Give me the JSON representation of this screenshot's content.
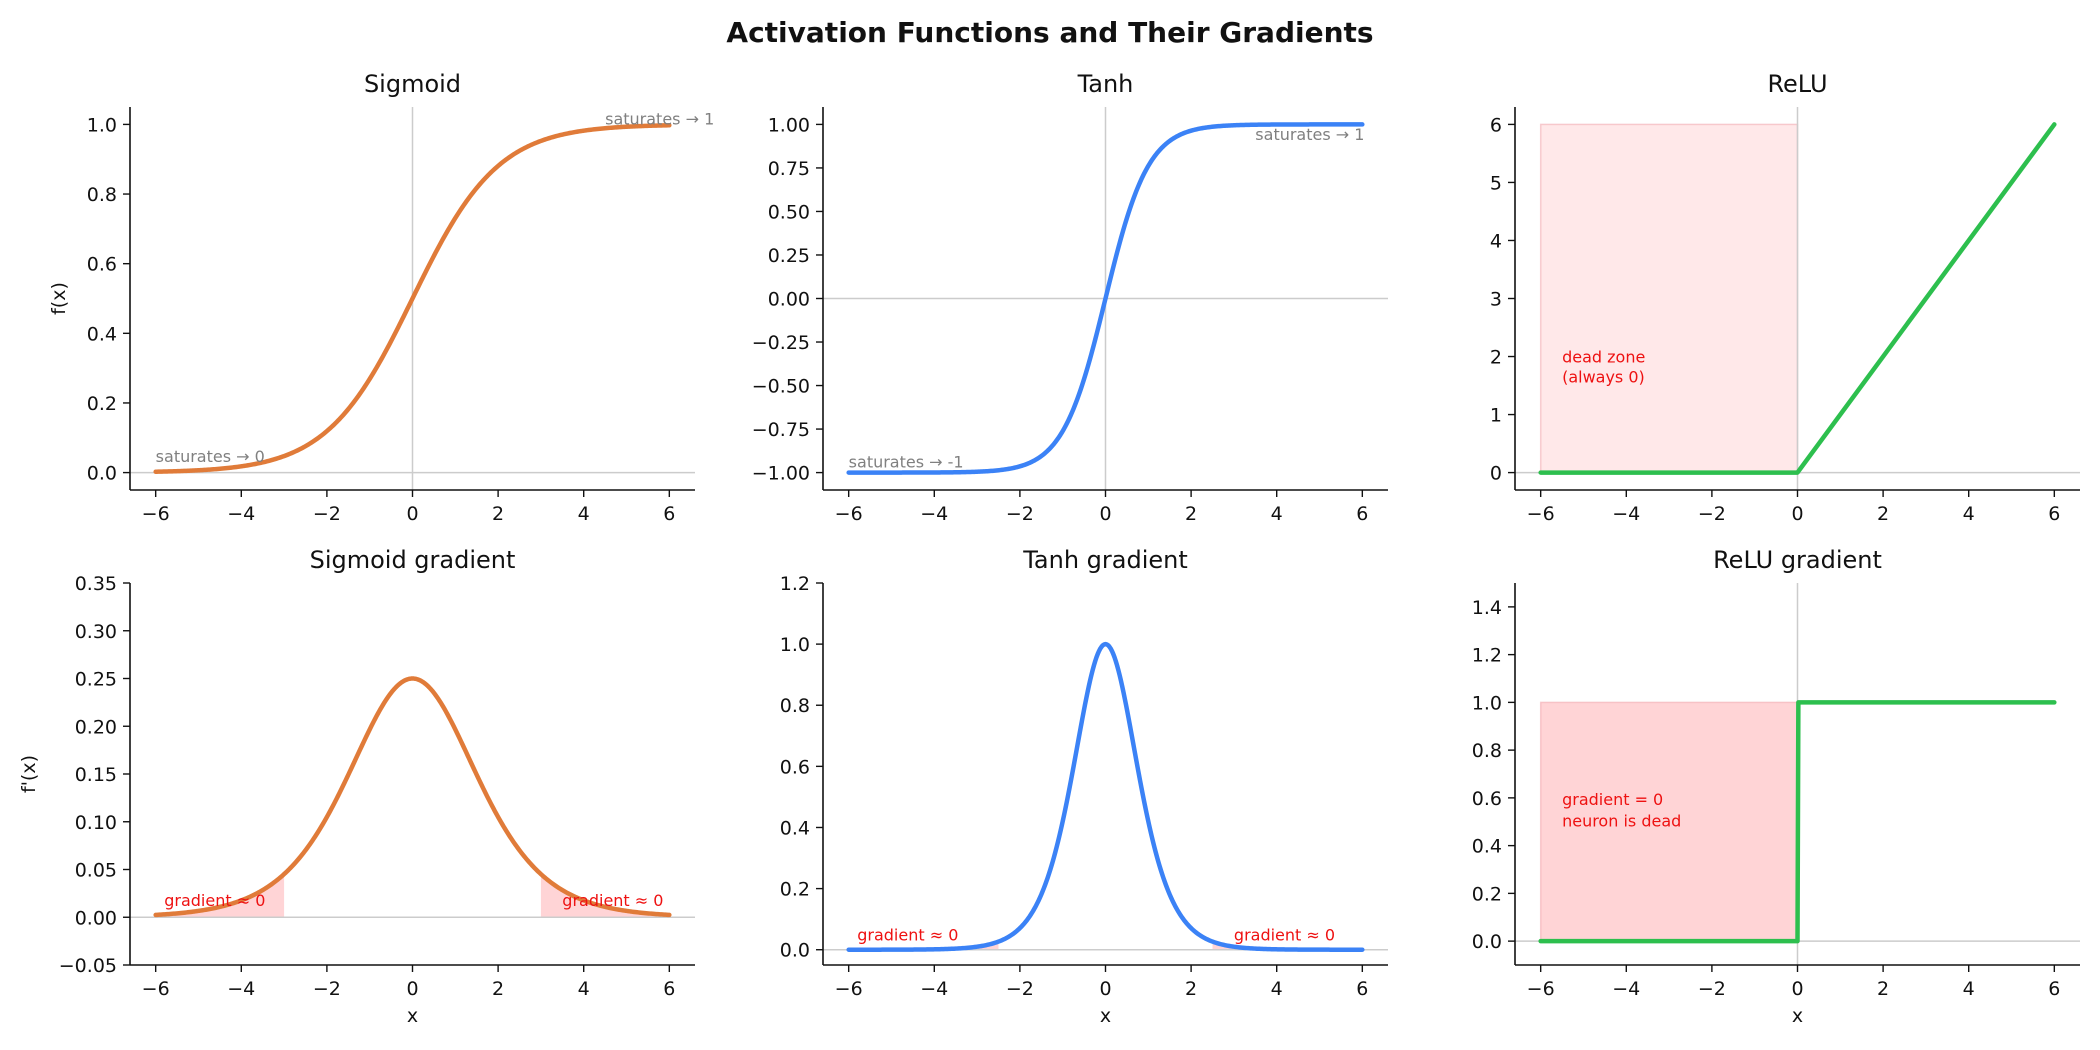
{
  "figure": {
    "title": "Activation Functions and Their Gradients"
  },
  "colors": {
    "sigmoid": "#e07b39",
    "tanh": "#3b82f6",
    "relu": "#2dbf4e",
    "region_fill": "#ffcccf",
    "region_text": "#ee1111",
    "annotation_gray": "#808080",
    "zero_line": "#cccccc"
  },
  "chart_data": [
    {
      "id": "sigmoid",
      "type": "line",
      "title": "Sigmoid",
      "xlabel": "",
      "ylabel": "f(x)",
      "xlim": [
        -6.6,
        6.6
      ],
      "ylim": [
        -0.05,
        1.05
      ],
      "xticks": [
        -6,
        -4,
        -2,
        0,
        2,
        4,
        6
      ],
      "yticks": [
        0.0,
        0.2,
        0.4,
        0.6,
        0.8,
        1.0
      ],
      "ytick_decimals": 1,
      "function": "sigmoid",
      "x_range": [
        -6,
        6
      ],
      "color": "#e07b39",
      "vline": true,
      "hline": true,
      "regions": [],
      "annotations": [
        {
          "x": -6,
          "y": 0.03,
          "text": "saturates → 0",
          "color": "gray",
          "anchor": "start"
        },
        {
          "x": 4.5,
          "y": 1.0,
          "text": "saturates → 1",
          "color": "gray",
          "anchor": "start"
        }
      ]
    },
    {
      "id": "tanh",
      "type": "line",
      "title": "Tanh",
      "xlabel": "",
      "ylabel": "",
      "xlim": [
        -6.6,
        6.6
      ],
      "ylim": [
        -1.1,
        1.1
      ],
      "xticks": [
        -6,
        -4,
        -2,
        0,
        2,
        4,
        6
      ],
      "yticks": [
        -1.0,
        -0.75,
        -0.5,
        -0.25,
        0.0,
        0.25,
        0.5,
        0.75,
        1.0
      ],
      "ytick_decimals": 2,
      "function": "tanh",
      "x_range": [
        -6,
        6
      ],
      "color": "#3b82f6",
      "vline": true,
      "hline": true,
      "regions": [],
      "annotations": [
        {
          "x": -6,
          "y": -0.97,
          "text": "saturates → -1",
          "color": "gray",
          "anchor": "start"
        },
        {
          "x": 3.5,
          "y": 0.91,
          "text": "saturates → 1",
          "color": "gray",
          "anchor": "start"
        }
      ]
    },
    {
      "id": "relu",
      "type": "line",
      "title": "ReLU",
      "xlabel": "",
      "ylabel": "",
      "xlim": [
        -6.6,
        6.6
      ],
      "ylim": [
        -0.3,
        6.3
      ],
      "xticks": [
        -6,
        -4,
        -2,
        0,
        2,
        4,
        6
      ],
      "yticks": [
        0,
        1,
        2,
        3,
        4,
        5,
        6
      ],
      "ytick_decimals": 0,
      "function": "relu",
      "x_range": [
        -6,
        6
      ],
      "color": "#2dbf4e",
      "vline": true,
      "hline": true,
      "regions": [
        {
          "x0": -6,
          "x1": 0,
          "y0": 0,
          "y1": 6,
          "opacity": 0.45
        }
      ],
      "annotations": [
        {
          "x": -5.5,
          "y": 1.9,
          "text": "dead zone",
          "color": "red",
          "anchor": "start"
        },
        {
          "x": -5.5,
          "y": 1.55,
          "text": "(always 0)",
          "color": "red",
          "anchor": "start"
        }
      ]
    },
    {
      "id": "sigmoid-gradient",
      "type": "line",
      "title": "Sigmoid gradient",
      "xlabel": "x",
      "ylabel": "f'(x)",
      "xlim": [
        -6.6,
        6.6
      ],
      "ylim": [
        -0.05,
        0.35
      ],
      "xticks": [
        -6,
        -4,
        -2,
        0,
        2,
        4,
        6
      ],
      "yticks": [
        -0.05,
        0.0,
        0.05,
        0.1,
        0.15,
        0.2,
        0.25,
        0.3,
        0.35
      ],
      "ytick_decimals": 2,
      "function": "sigmoid_grad",
      "x_range": [
        -6,
        6
      ],
      "color": "#e07b39",
      "vline": false,
      "hline": true,
      "regions": [
        {
          "x0": -6,
          "x1": -3,
          "y0": 0,
          "y1": "curve",
          "opacity": 0.85
        },
        {
          "x0": 3,
          "x1": 6,
          "y0": 0,
          "y1": "curve",
          "opacity": 0.85
        }
      ],
      "annotations": [
        {
          "x": -5.8,
          "y": 0.012,
          "text": "gradient ≈ 0",
          "color": "red",
          "anchor": "start"
        },
        {
          "x": 3.5,
          "y": 0.012,
          "text": "gradient ≈ 0",
          "color": "red",
          "anchor": "start"
        }
      ]
    },
    {
      "id": "tanh-gradient",
      "type": "line",
      "title": "Tanh gradient",
      "xlabel": "x",
      "ylabel": "",
      "xlim": [
        -6.6,
        6.6
      ],
      "ylim": [
        -0.05,
        1.2
      ],
      "xticks": [
        -6,
        -4,
        -2,
        0,
        2,
        4,
        6
      ],
      "yticks": [
        0.0,
        0.2,
        0.4,
        0.6,
        0.8,
        1.0,
        1.2
      ],
      "ytick_decimals": 1,
      "function": "tanh_grad",
      "x_range": [
        -6,
        6
      ],
      "color": "#3b82f6",
      "vline": false,
      "hline": true,
      "regions": [
        {
          "x0": -6,
          "x1": -2.5,
          "y0": 0,
          "y1": "curve",
          "opacity": 0.85
        },
        {
          "x0": 2.5,
          "x1": 6,
          "y0": 0,
          "y1": "curve",
          "opacity": 0.85
        }
      ],
      "annotations": [
        {
          "x": -5.8,
          "y": 0.03,
          "text": "gradient ≈ 0",
          "color": "red",
          "anchor": "start"
        },
        {
          "x": 3.0,
          "y": 0.03,
          "text": "gradient ≈ 0",
          "color": "red",
          "anchor": "start"
        }
      ]
    },
    {
      "id": "relu-gradient",
      "type": "line",
      "title": "ReLU gradient",
      "xlabel": "x",
      "ylabel": "",
      "xlim": [
        -6.6,
        6.6
      ],
      "ylim": [
        -0.1,
        1.5
      ],
      "xticks": [
        -6,
        -4,
        -2,
        0,
        2,
        4,
        6
      ],
      "yticks": [
        0.0,
        0.2,
        0.4,
        0.6,
        0.8,
        1.0,
        1.2,
        1.4
      ],
      "ytick_decimals": 1,
      "function": "relu_grad",
      "x_range": [
        -6,
        6
      ],
      "color": "#2dbf4e",
      "vline": true,
      "hline": true,
      "regions": [
        {
          "x0": -6,
          "x1": 0,
          "y0": 0,
          "y1": 1,
          "opacity": 0.85
        }
      ],
      "annotations": [
        {
          "x": -5.5,
          "y": 0.57,
          "text": "gradient = 0",
          "color": "red",
          "anchor": "start"
        },
        {
          "x": -5.5,
          "y": 0.48,
          "text": "neuron is dead",
          "color": "red",
          "anchor": "start"
        }
      ]
    }
  ]
}
